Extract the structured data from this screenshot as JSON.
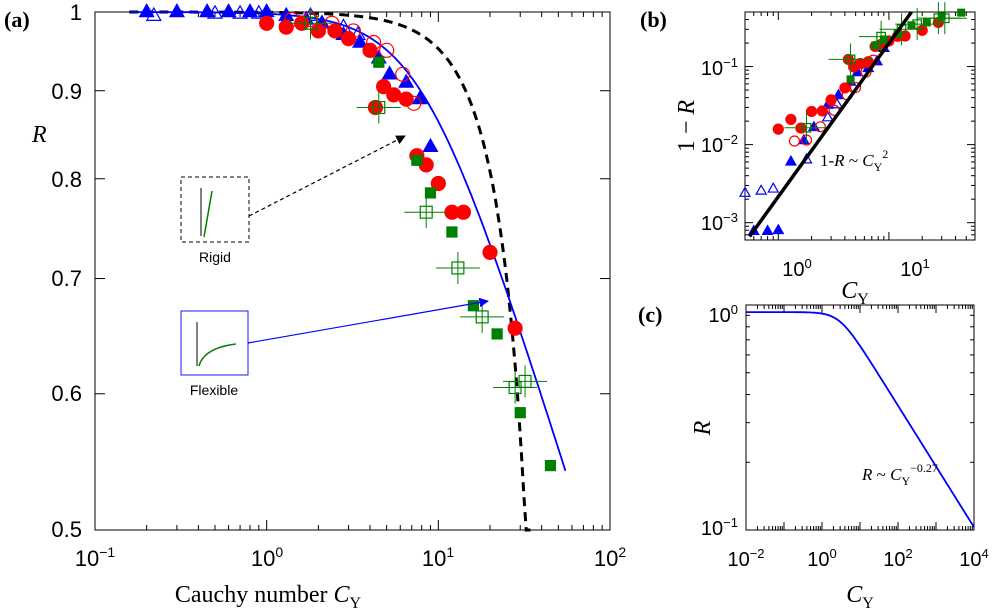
{
  "chart_data": [
    {
      "panel": "(a)",
      "type": "scatter",
      "xscale": "log",
      "yscale": "log",
      "xlim": [
        0.1,
        100
      ],
      "ylim": [
        0.5,
        1.0
      ],
      "xticks": [
        "10^-1",
        "10^0",
        "10^1",
        "10^2"
      ],
      "yticks": [
        "0.5",
        "0.6",
        "0.7",
        "0.8",
        "0.9",
        "1"
      ],
      "xlabel": "Cauchy number C_Y",
      "ylabel": "R",
      "annotations": {
        "rigid": "Rigid",
        "flexible": "Flexible"
      },
      "series": [
        {
          "marker": "filled-triangle",
          "color": "#0000ff",
          "points": [
            [
              0.2,
              1.0
            ],
            [
              0.3,
              1.0
            ],
            [
              0.45,
              1.0
            ],
            [
              0.6,
              1.0
            ],
            [
              0.8,
              1.0
            ],
            [
              1.0,
              1.0
            ],
            [
              1.3,
              0.995
            ],
            [
              1.7,
              0.99
            ],
            [
              2.1,
              0.985
            ],
            [
              2.8,
              0.97
            ],
            [
              3.5,
              0.96
            ],
            [
              4.5,
              0.94
            ],
            [
              5.2,
              0.92
            ],
            [
              6.5,
              0.91
            ],
            [
              7.8,
              0.89
            ],
            [
              9.0,
              0.835
            ]
          ]
        },
        {
          "marker": "open-triangle",
          "color": "#0000ff",
          "points": [
            [
              0.22,
              0.995
            ],
            [
              0.5,
              0.998
            ],
            [
              0.7,
              0.998
            ],
            [
              0.9,
              0.998
            ],
            [
              1.8,
              0.995
            ],
            [
              2.8,
              0.98
            ],
            [
              3.4,
              0.97
            ]
          ]
        },
        {
          "marker": "filled-circle",
          "color": "#ff0000",
          "points": [
            [
              1.0,
              0.985
            ],
            [
              1.3,
              0.98
            ],
            [
              1.6,
              0.985
            ],
            [
              2.0,
              0.975
            ],
            [
              2.5,
              0.975
            ],
            [
              3.0,
              0.965
            ],
            [
              4.0,
              0.95
            ],
            [
              4.3,
              0.88
            ],
            [
              4.8,
              0.905
            ],
            [
              5.5,
              0.895
            ],
            [
              6.5,
              0.89
            ],
            [
              7.5,
              0.825
            ],
            [
              8.5,
              0.815
            ],
            [
              10.0,
              0.795
            ],
            [
              12.0,
              0.765
            ],
            [
              14.0,
              0.765
            ],
            [
              20.0,
              0.725
            ],
            [
              28.0,
              0.655
            ]
          ]
        },
        {
          "marker": "open-circle",
          "color": "#ff0000",
          "points": [
            [
              1.4,
              0.99
            ],
            [
              1.8,
              0.99
            ],
            [
              2.4,
              0.985
            ],
            [
              3.2,
              0.975
            ],
            [
              4.2,
              0.96
            ],
            [
              5.0,
              0.95
            ],
            [
              6.2,
              0.92
            ],
            [
              7.2,
              0.885
            ]
          ]
        },
        {
          "marker": "filled-square",
          "color": "#008000",
          "points": [
            [
              4.5,
              0.935
            ],
            [
              7.5,
              0.82
            ],
            [
              9.0,
              0.785
            ],
            [
              12.0,
              0.745
            ],
            [
              16.0,
              0.675
            ],
            [
              22.0,
              0.65
            ],
            [
              30.0,
              0.585
            ],
            [
              45.0,
              0.545
            ]
          ]
        },
        {
          "marker": "open-square-errorbar",
          "color": "#008000",
          "points": [
            [
              1.8,
              0.985
            ],
            [
              4.5,
              0.88
            ],
            [
              8.5,
              0.765
            ],
            [
              13.0,
              0.71
            ],
            [
              18.0,
              0.665
            ],
            [
              28.0,
              0.605
            ],
            [
              32.0,
              0.61
            ]
          ]
        }
      ],
      "fit_curves": [
        {
          "style": "solid",
          "color": "#0000ff"
        },
        {
          "style": "dashed",
          "color": "#000000"
        }
      ]
    },
    {
      "panel": "(b)",
      "type": "scatter",
      "xscale": "log",
      "yscale": "log",
      "xlim": [
        0.5,
        60
      ],
      "ylim": [
        0.0006,
        0.5
      ],
      "xticks": [
        "10^0",
        "10^1"
      ],
      "yticks": [
        "10^-3",
        "10^-2",
        "10^-1"
      ],
      "xlabel": "C_Y",
      "ylabel": "1 − R",
      "annotation": "1-R ~ C_Y^2",
      "fit_line": {
        "law": "power",
        "exponent": 2,
        "color": "#000000"
      }
    },
    {
      "panel": "(c)",
      "type": "line",
      "xscale": "log",
      "yscale": "log",
      "xlim": [
        0.01,
        10000
      ],
      "ylim": [
        0.1,
        1.0
      ],
      "xticks": [
        "10^-2",
        "10^0",
        "10^2",
        "10^4"
      ],
      "yticks": [
        "10^-1",
        "10^0"
      ],
      "xlabel": "C_Y",
      "ylabel": "R",
      "annotation": "R ~ C_Y^-0.27",
      "curve_color": "#0000ff"
    }
  ]
}
